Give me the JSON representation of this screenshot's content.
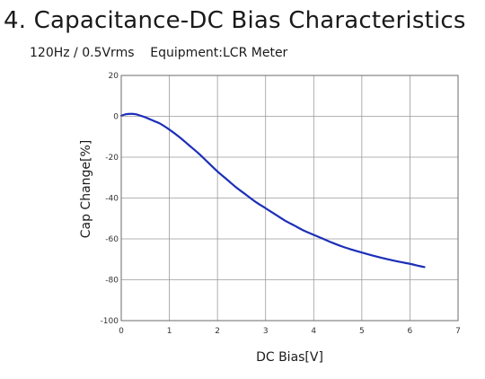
{
  "header": {
    "title": "4. Capacitance-DC Bias Characteristics",
    "subtitle": "120Hz / 0.5Vrms    Equipment:LCR Meter"
  },
  "colors": {
    "series": "#1c2fb8",
    "grid": "#9a9a9a",
    "frame": "#6b6b6b"
  },
  "chart_data": {
    "type": "line",
    "xlabel": "DC Bias[V]",
    "ylabel": "Cap Change[%]",
    "xlim": [
      0,
      7
    ],
    "ylim": [
      -100,
      20
    ],
    "xticks": [
      0,
      1,
      2,
      3,
      4,
      5,
      6,
      7
    ],
    "yticks": [
      20,
      0,
      -20,
      -40,
      -60,
      -80,
      -100
    ],
    "yticklabels": [
      "20",
      "0",
      "-20",
      "-40",
      "-60",
      "-80",
      "-100"
    ],
    "grid": true,
    "series": [
      {
        "x": [
          0,
          0.1,
          0.2,
          0.3,
          0.4,
          0.5,
          0.6,
          0.7,
          0.8,
          1.0,
          1.2,
          1.4,
          1.6,
          1.8,
          2.0,
          2.2,
          2.4,
          2.6,
          2.8,
          3.0,
          3.2,
          3.4,
          3.6,
          3.8,
          4.0,
          4.2,
          4.4,
          4.6,
          4.8,
          5.0,
          5.2,
          5.4,
          5.6,
          5.8,
          6.0,
          6.2,
          6.3
        ],
        "y": [
          0.3,
          1.0,
          1.2,
          1.0,
          0.3,
          -0.5,
          -1.5,
          -2.5,
          -3.5,
          -6.5,
          -10,
          -14,
          -18,
          -22.5,
          -27,
          -31,
          -35,
          -38.5,
          -42,
          -45,
          -48,
          -51,
          -53.5,
          -56,
          -58,
          -60,
          -62,
          -63.8,
          -65.3,
          -66.7,
          -68,
          -69.2,
          -70.3,
          -71.3,
          -72.2,
          -73.3,
          -73.8
        ]
      }
    ]
  }
}
